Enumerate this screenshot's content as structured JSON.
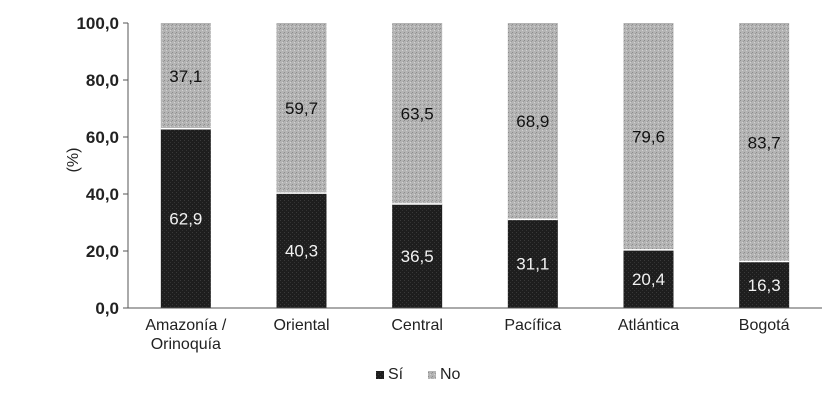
{
  "chart_data": {
    "type": "bar",
    "stacked": true,
    "categories": [
      "Amazonía / Orinoquía",
      "Oriental",
      "Central",
      "Pacífica",
      "Atlántica",
      "Bogotá"
    ],
    "series": [
      {
        "name": "Sí",
        "values": [
          62.9,
          40.3,
          36.5,
          31.1,
          20.4,
          16.3
        ],
        "color": "#1e1e1e"
      },
      {
        "name": "No",
        "values": [
          37.1,
          59.7,
          63.5,
          68.9,
          79.6,
          83.7
        ],
        "color": "#b4b4b4"
      }
    ],
    "value_labels": {
      "Sí": [
        "62,9",
        "40,3",
        "36,5",
        "31,1",
        "20,4",
        "16,3"
      ],
      "No": [
        "37,1",
        "59,7",
        "63,5",
        "68,9",
        "79,6",
        "83,7"
      ]
    },
    "yticks": [
      "0,0",
      "20,0",
      "40,0",
      "60,0",
      "80,0",
      "100,0"
    ],
    "ylabel": "(%)",
    "ylim": [
      0,
      100
    ],
    "grid": false,
    "legend_placement": "bottom-center"
  }
}
